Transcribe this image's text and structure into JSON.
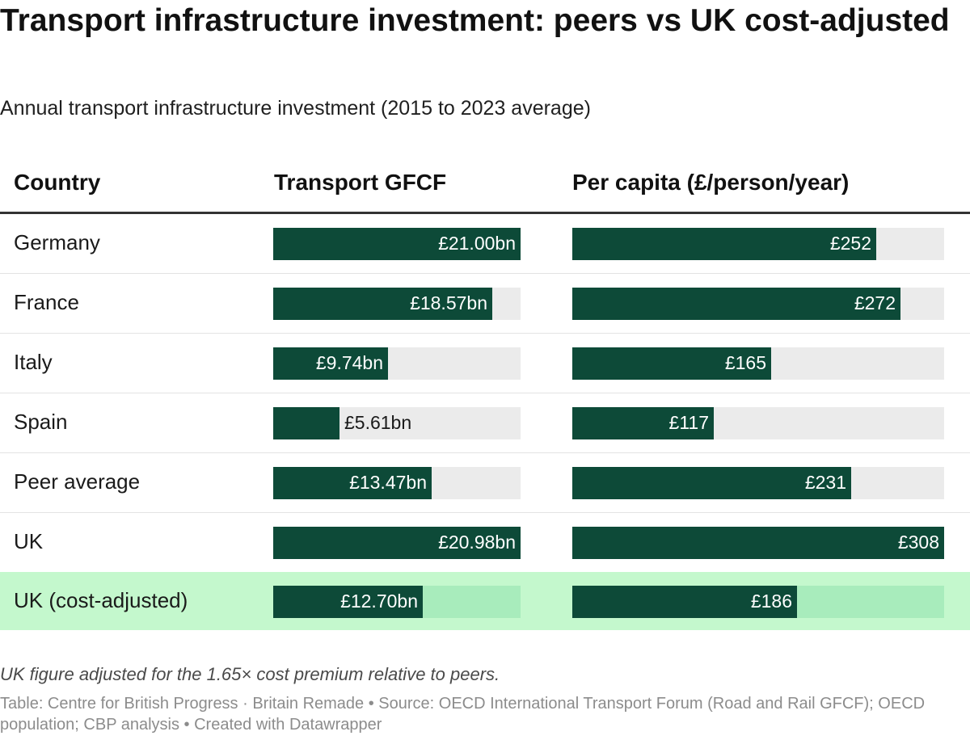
{
  "title": "Transport infrastructure investment: peers vs UK cost-adjusted",
  "subtitle": "Annual transport infrastructure investment (2015 to 2023 average)",
  "note": "UK figure adjusted for the 1.65× cost premium relative to peers.",
  "source": "Table: Centre for British Progress · Britain Remade • Source: OECD International Transport Forum (Road and Rail GFCF); OECD population; CBP analysis • Created with Datawrapper",
  "colors": {
    "bar": "#0d4a38",
    "track": "#ebebeb",
    "highlight_row": "#c4f8cd",
    "highlight_track": "#a8ecbc"
  },
  "chart_data": {
    "type": "table",
    "columns": [
      "Country",
      "Transport GFCF",
      "Per capita (£/person/year)"
    ],
    "gfcf_max": 21.0,
    "per_capita_max": 308,
    "rows": [
      {
        "country": "Germany",
        "gfcf": 21.0,
        "gfcf_label": "£21.00bn",
        "per_capita": 252,
        "per_capita_label": "£252",
        "highlight": false
      },
      {
        "country": "France",
        "gfcf": 18.57,
        "gfcf_label": "£18.57bn",
        "per_capita": 272,
        "per_capita_label": "£272",
        "highlight": false
      },
      {
        "country": "Italy",
        "gfcf": 9.74,
        "gfcf_label": "£9.74bn",
        "per_capita": 165,
        "per_capita_label": "£165",
        "highlight": false
      },
      {
        "country": "Spain",
        "gfcf": 5.61,
        "gfcf_label": "£5.61bn",
        "per_capita": 117,
        "per_capita_label": "£117",
        "highlight": false
      },
      {
        "country": "Peer average",
        "gfcf": 13.47,
        "gfcf_label": "£13.47bn",
        "per_capita": 231,
        "per_capita_label": "£231",
        "highlight": false
      },
      {
        "country": "UK",
        "gfcf": 20.98,
        "gfcf_label": "£20.98bn",
        "per_capita": 308,
        "per_capita_label": "£308",
        "highlight": false
      },
      {
        "country": "UK (cost-adjusted)",
        "gfcf": 12.7,
        "gfcf_label": "£12.70bn",
        "per_capita": 186,
        "per_capita_label": "£186",
        "highlight": true
      }
    ]
  }
}
